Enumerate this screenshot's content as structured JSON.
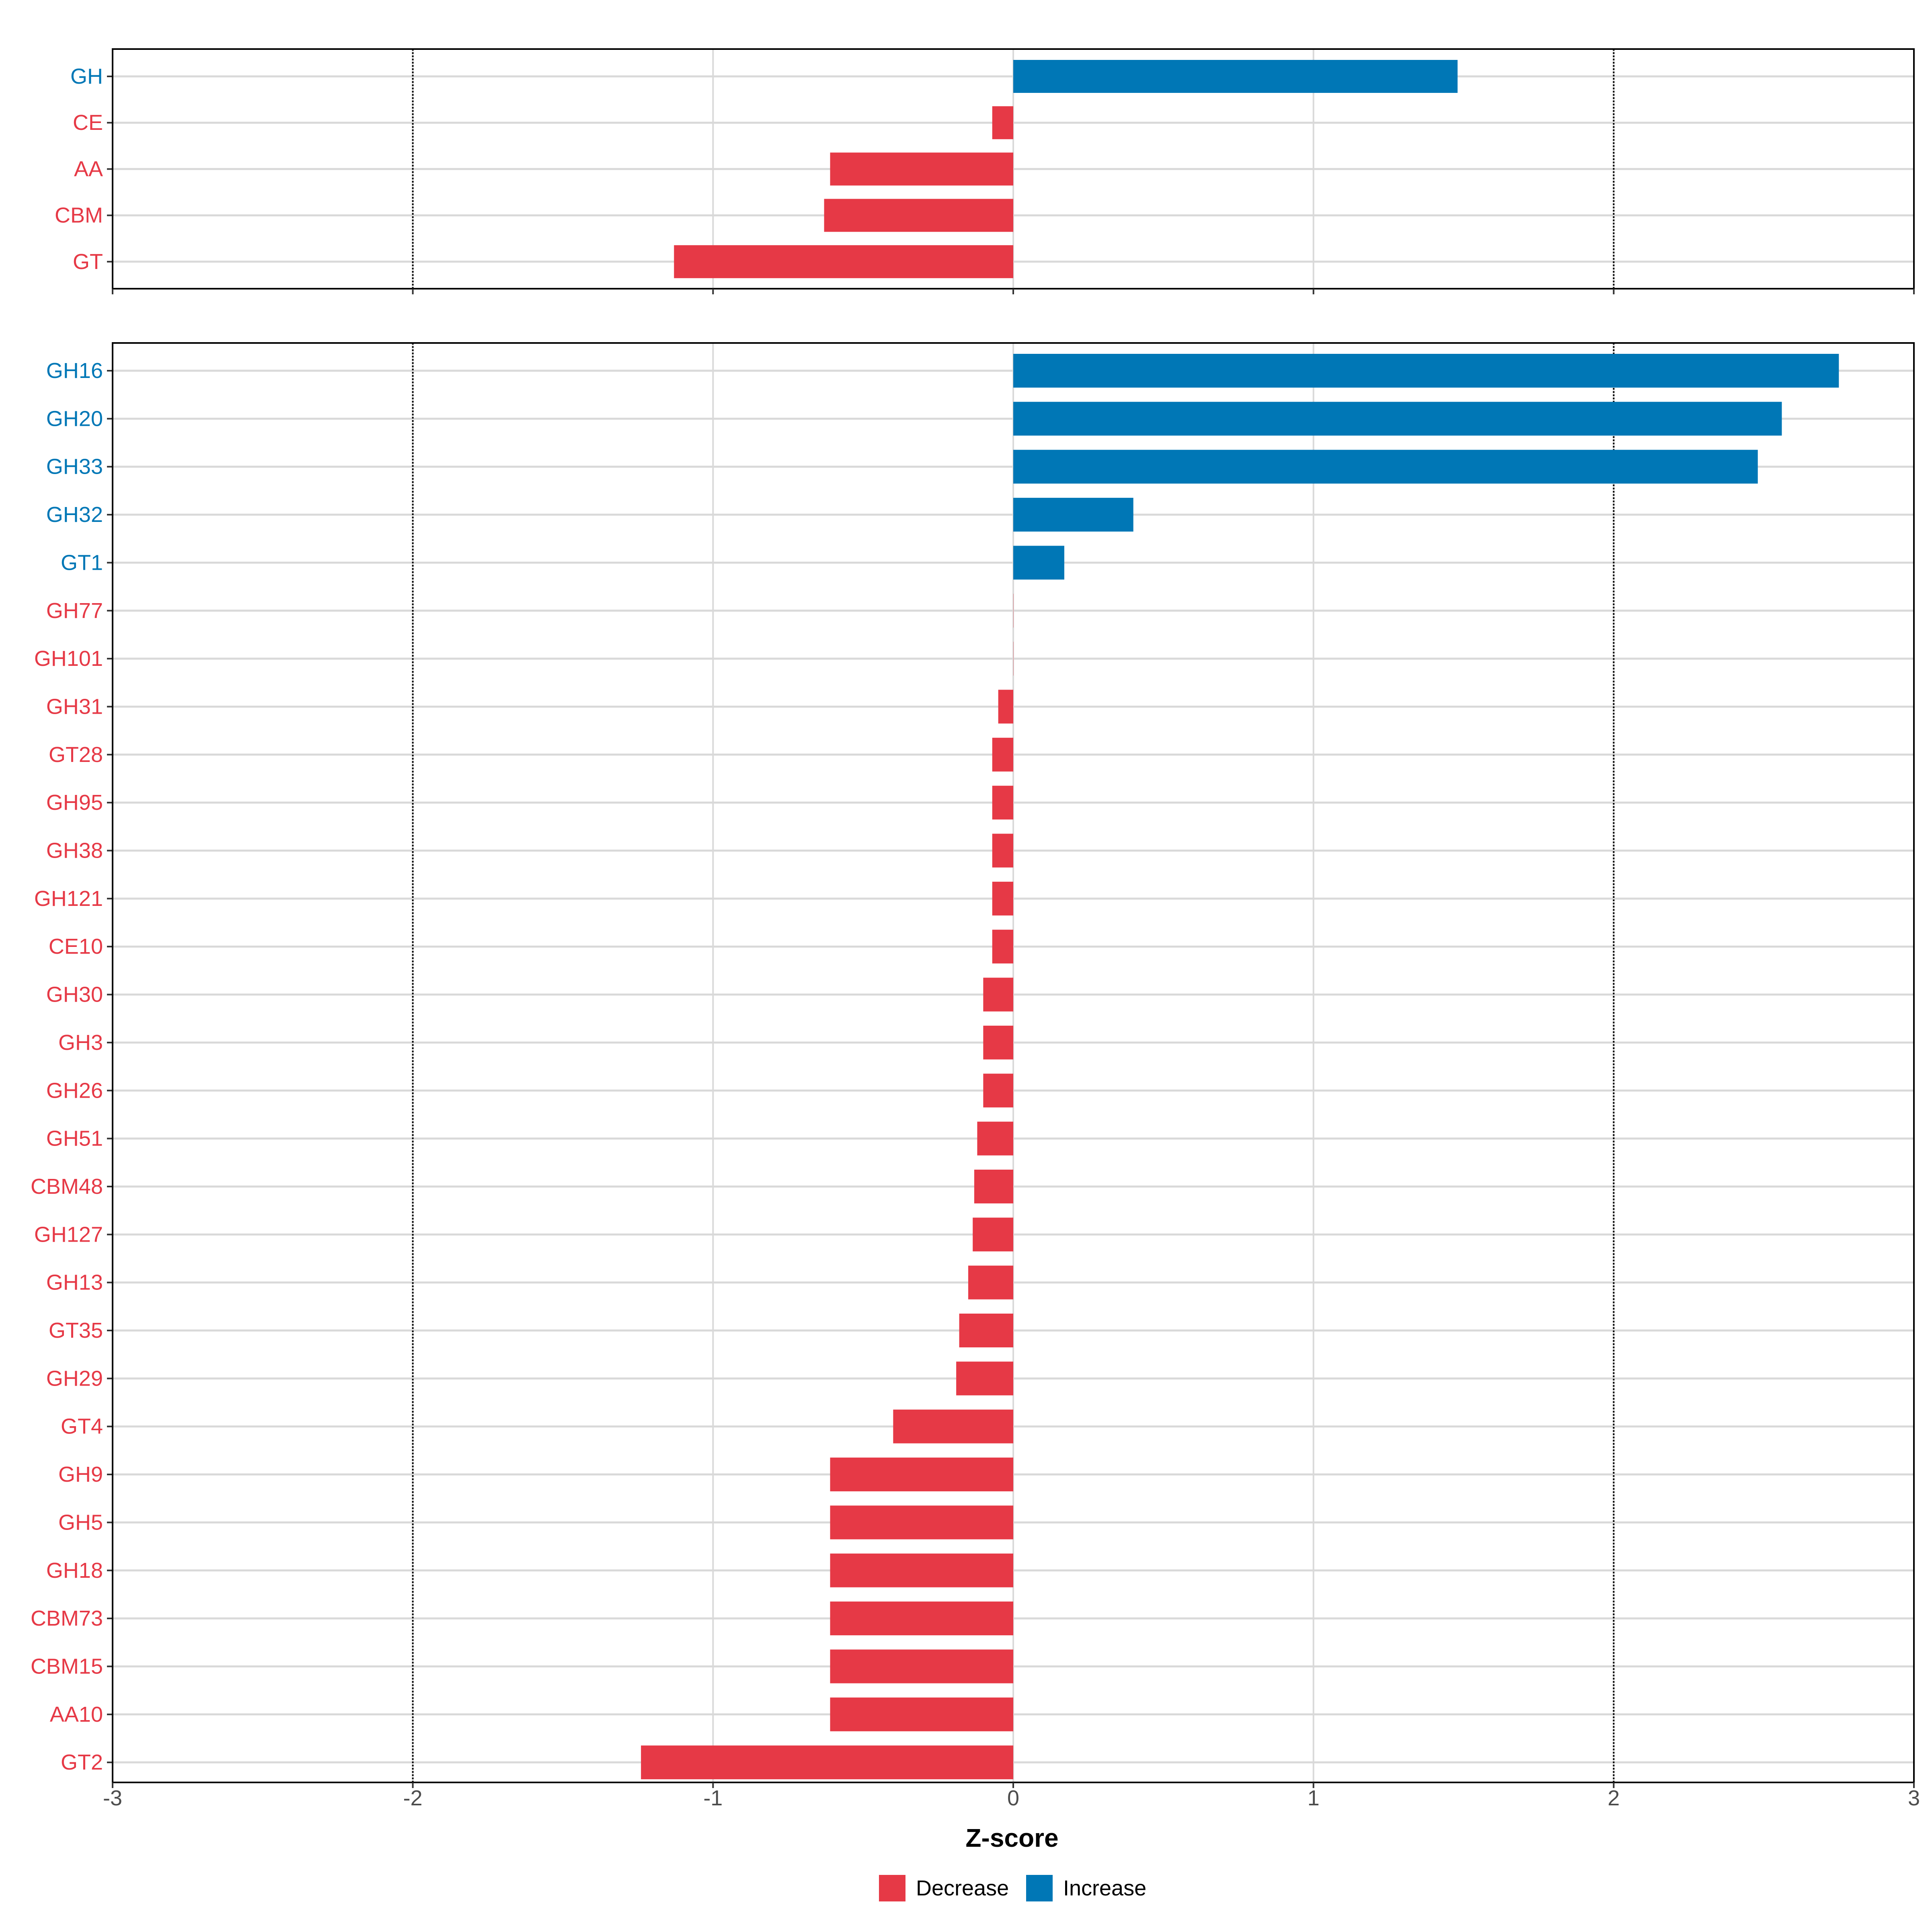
{
  "chart_data": [
    {
      "type": "bar",
      "orientation": "horizontal",
      "panel": "category-level",
      "categories": [
        "GH",
        "CE",
        "AA",
        "CBM",
        "GT"
      ],
      "values": [
        1.48,
        -0.07,
        -0.61,
        -0.63,
        -1.13
      ],
      "directions": [
        "Increase",
        "Decrease",
        "Decrease",
        "Decrease",
        "Decrease"
      ],
      "xlim": [
        -3,
        3
      ],
      "reference_lines": [
        -2,
        2
      ],
      "grid": true
    },
    {
      "type": "bar",
      "orientation": "horizontal",
      "panel": "family-level",
      "categories": [
        "GH16",
        "GH20",
        "GH33",
        "GH32",
        "GT1",
        "GH77",
        "GH101",
        "GH31",
        "GT28",
        "GH95",
        "GH38",
        "GH121",
        "CE10",
        "GH30",
        "GH3",
        "GH26",
        "GH51",
        "CBM48",
        "GH127",
        "GH13",
        "GT35",
        "GH29",
        "GT4",
        "GH9",
        "GH5",
        "GH18",
        "CBM73",
        "CBM15",
        "AA10",
        "GT2"
      ],
      "values": [
        2.75,
        2.56,
        2.48,
        0.4,
        0.17,
        0.0,
        0.0,
        -0.05,
        -0.07,
        -0.07,
        -0.07,
        -0.07,
        -0.07,
        -0.1,
        -0.1,
        -0.1,
        -0.12,
        -0.13,
        -0.135,
        -0.15,
        -0.18,
        -0.19,
        -0.4,
        -0.61,
        -0.61,
        -0.61,
        -0.61,
        -0.61,
        -0.61,
        -1.24
      ],
      "directions": [
        "Increase",
        "Increase",
        "Increase",
        "Increase",
        "Increase",
        "Decrease",
        "Decrease",
        "Decrease",
        "Decrease",
        "Decrease",
        "Decrease",
        "Decrease",
        "Decrease",
        "Decrease",
        "Decrease",
        "Decrease",
        "Decrease",
        "Decrease",
        "Decrease",
        "Decrease",
        "Decrease",
        "Decrease",
        "Decrease",
        "Decrease",
        "Decrease",
        "Decrease",
        "Decrease",
        "Decrease",
        "Decrease",
        "Decrease"
      ],
      "xlim": [
        -3,
        3
      ],
      "x_ticks": [
        -3,
        -2,
        -1,
        0,
        1,
        2,
        3
      ],
      "reference_lines": [
        -2,
        2
      ],
      "xlabel": "Z-score",
      "grid": true
    }
  ],
  "legend": {
    "position": "bottom",
    "items": [
      {
        "label": "Decrease",
        "color": "#e63946"
      },
      {
        "label": "Increase",
        "color": "#0077b6"
      }
    ]
  },
  "colors": {
    "Decrease": "#e63946",
    "Increase": "#0077b6",
    "grid": "#d9d9d9",
    "axis": "#000000",
    "tick_text": "#4d4d4d"
  }
}
